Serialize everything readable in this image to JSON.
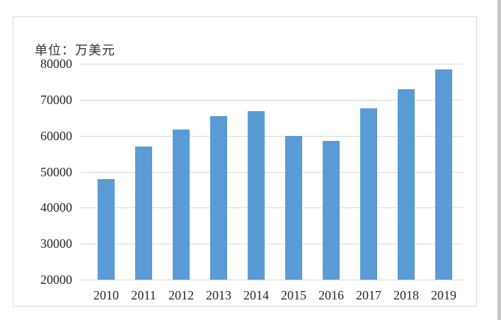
{
  "chart_data": {
    "type": "bar",
    "title": "单位：万美元",
    "categories": [
      "2010",
      "2011",
      "2012",
      "2013",
      "2014",
      "2015",
      "2016",
      "2017",
      "2018",
      "2019"
    ],
    "values": [
      48000,
      57000,
      61800,
      65400,
      66900,
      60000,
      58500,
      67700,
      73000,
      78500
    ],
    "xlabel": "",
    "ylabel": "",
    "ylim": [
      20000,
      80000
    ],
    "yticks": [
      20000,
      30000,
      40000,
      50000,
      60000,
      70000,
      80000
    ],
    "grid": "horizontal-only",
    "legend": "none",
    "colors": {
      "bar": "#5B9BD5",
      "gridline": "#d9d9d9",
      "panel_border": "#d9d9d9",
      "text": "#262626",
      "background": "#ffffff",
      "screen_edge": "#c6c6c6"
    }
  }
}
